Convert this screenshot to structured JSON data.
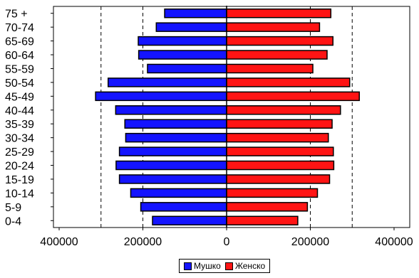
{
  "chart_data": {
    "type": "bar",
    "orientation": "horizontal",
    "subtype": "population-pyramid",
    "categories": [
      "0-4",
      "5-9",
      "10-14",
      "15-19",
      "20-24",
      "25-29",
      "30-34",
      "35-39",
      "40-44",
      "45-49",
      "50-54",
      "55-59",
      "60-64",
      "65-69",
      "70-74",
      "75 +"
    ],
    "series": [
      {
        "name": "Мушко",
        "color": "#1414ff",
        "side": "left",
        "values": [
          177000,
          205000,
          229000,
          256000,
          264000,
          256000,
          241000,
          243000,
          265000,
          313000,
          283000,
          189000,
          210000,
          211000,
          168000,
          148000
        ]
      },
      {
        "name": "Женско",
        "color": "#ff1414",
        "side": "right",
        "values": [
          170000,
          193000,
          217000,
          246000,
          256000,
          255000,
          243000,
          252000,
          272000,
          317000,
          294000,
          206000,
          240000,
          254000,
          222000,
          249000
        ]
      }
    ],
    "xlim": [
      -400000,
      400000
    ],
    "x_ticks": [
      {
        "value": -400000,
        "label": "400000"
      },
      {
        "value": -200000,
        "label": "200000"
      },
      {
        "value": 0,
        "label": "0"
      },
      {
        "value": 200000,
        "label": "200000"
      },
      {
        "value": 400000,
        "label": "400000"
      }
    ],
    "gridlines": [
      -300000,
      -200000,
      200000,
      300000
    ],
    "grid": "dashed vertical",
    "legend_position": "bottom"
  }
}
